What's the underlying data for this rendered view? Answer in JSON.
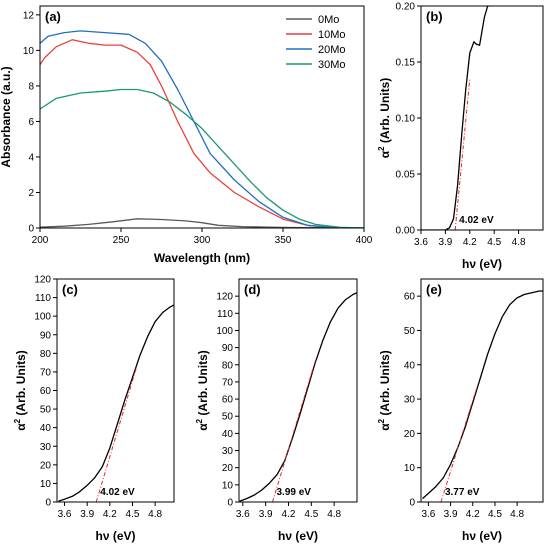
{
  "chart_data": [
    {
      "panel": "(a)",
      "type": "line",
      "xlabel": "Wavelength (nm)",
      "ylabel": "Absorbance (a.u.)",
      "xlim": [
        200,
        400
      ],
      "ylim": [
        0,
        12.5
      ],
      "xticks": [
        200,
        250,
        300,
        350,
        400
      ],
      "yticks": [
        0,
        2,
        4,
        6,
        8,
        10,
        12
      ],
      "legend_position": "top-right",
      "series": [
        {
          "name": "0Mo",
          "color": "#5a5a5a",
          "x": [
            200,
            215,
            230,
            245,
            260,
            275,
            290,
            300,
            310,
            325,
            340,
            355,
            370,
            400
          ],
          "y": [
            0.05,
            0.1,
            0.2,
            0.35,
            0.52,
            0.48,
            0.4,
            0.3,
            0.15,
            0.08,
            0.05,
            0.03,
            0.02,
            0.0
          ]
        },
        {
          "name": "10Mo",
          "color": "#e8413e",
          "x": [
            200,
            203,
            210,
            220,
            230,
            240,
            250,
            260,
            268,
            275,
            285,
            295,
            305,
            320,
            335,
            350,
            365,
            380,
            400
          ],
          "y": [
            9.2,
            9.6,
            10.2,
            10.6,
            10.4,
            10.3,
            10.3,
            9.9,
            9.2,
            8.0,
            6.0,
            4.2,
            3.1,
            2.0,
            1.2,
            0.5,
            0.15,
            0.03,
            0.0
          ]
        },
        {
          "name": "20Mo",
          "color": "#1f70c1",
          "x": [
            200,
            205,
            215,
            225,
            240,
            255,
            265,
            275,
            285,
            295,
            305,
            320,
            335,
            350,
            365,
            380,
            400
          ],
          "y": [
            10.4,
            10.8,
            11.0,
            11.1,
            11.0,
            10.9,
            10.4,
            9.4,
            7.8,
            6.0,
            4.2,
            2.7,
            1.5,
            0.6,
            0.15,
            0.03,
            0.0
          ]
        },
        {
          "name": "30Mo",
          "color": "#1a9a6c",
          "x": [
            200,
            210,
            225,
            240,
            250,
            260,
            270,
            280,
            290,
            300,
            310,
            320,
            330,
            340,
            350,
            360,
            370,
            385,
            400
          ],
          "y": [
            6.7,
            7.3,
            7.6,
            7.7,
            7.8,
            7.8,
            7.6,
            7.1,
            6.4,
            5.6,
            4.6,
            3.6,
            2.6,
            1.7,
            1.0,
            0.5,
            0.2,
            0.04,
            0.0
          ]
        }
      ]
    },
    {
      "panel": "(b)",
      "type": "line",
      "xlabel": "hν (eV)",
      "ylabel": "α² (Arb. Units)",
      "ylabel_base": "α",
      "ylabel_sup": "2",
      "ylabel_rest": " (Arb. Units)",
      "xlim": [
        3.6,
        5.1
      ],
      "ylim": [
        0,
        0.2
      ],
      "xticks": [
        3.6,
        3.9,
        4.2,
        4.5,
        4.8
      ],
      "xtick_labels": [
        "3.6",
        "3.9",
        "4.2",
        "4.5",
        "4.8"
      ],
      "yticks": [
        0,
        0.05,
        0.1,
        0.15,
        0.2
      ],
      "ytick_labels": [
        "0.00",
        "0.05",
        "0.10",
        "0.15",
        "0.20"
      ],
      "annotation": "4.02 eV",
      "band_gap": 4.02,
      "fit_line": {
        "x": [
          4.02,
          4.2
        ],
        "y": [
          0,
          0.135
        ]
      },
      "series": [
        {
          "name": "",
          "color": "#000000",
          "x": [
            3.6,
            3.9,
            3.95,
            4.0,
            4.05,
            4.1,
            4.15,
            4.2,
            4.25,
            4.28,
            4.32,
            4.38,
            4.42,
            4.44
          ],
          "y": [
            0,
            0,
            0.002,
            0.01,
            0.04,
            0.085,
            0.125,
            0.158,
            0.168,
            0.166,
            0.165,
            0.19,
            0.2,
            0.2
          ]
        }
      ]
    },
    {
      "panel": "(c)",
      "type": "line",
      "xlabel": "hν (eV)",
      "ylabel": "α² (Arb. Units)",
      "ylabel_base": "α",
      "ylabel_sup": "2",
      "ylabel_rest": " (Arb. Units)",
      "xlim": [
        3.5,
        5.05
      ],
      "ylim": [
        0,
        120
      ],
      "xticks": [
        3.6,
        3.9,
        4.2,
        4.5,
        4.8
      ],
      "xtick_labels": [
        "3.6",
        "3.9",
        "4.2",
        "4.5",
        "4.8"
      ],
      "yticks": [
        0,
        10,
        20,
        30,
        40,
        50,
        60,
        70,
        80,
        90,
        100,
        110,
        120
      ],
      "ytick_labels": [
        "0",
        "10",
        "20",
        "30",
        "40",
        "50",
        "60",
        "70",
        "80",
        "90",
        "100",
        "110",
        "120"
      ],
      "annotation": "4.02 eV",
      "band_gap": 4.02,
      "fit_line": {
        "x": [
          4.02,
          4.55
        ],
        "y": [
          0,
          72
        ]
      },
      "series": [
        {
          "name": "",
          "color": "#000000",
          "x": [
            3.52,
            3.6,
            3.7,
            3.8,
            3.9,
            4.0,
            4.1,
            4.2,
            4.3,
            4.4,
            4.5,
            4.6,
            4.7,
            4.8,
            4.9,
            5.0,
            5.05
          ],
          "y": [
            0.5,
            1.5,
            3,
            5.5,
            9,
            13,
            19,
            29,
            42,
            55,
            67,
            79,
            89,
            97,
            102,
            105,
            106
          ]
        }
      ]
    },
    {
      "panel": "(d)",
      "type": "line",
      "xlabel": "hν (eV)",
      "ylabel": "α² (Arb. Units)",
      "ylabel_base": "α",
      "ylabel_sup": "2",
      "ylabel_rest": " (Arb. Units)",
      "xlim": [
        3.55,
        5.1
      ],
      "ylim": [
        0,
        130
      ],
      "xticks": [
        3.6,
        3.9,
        4.2,
        4.5,
        4.8
      ],
      "xtick_labels": [
        "3.6",
        "3.9",
        "4.2",
        "4.5",
        "4.8"
      ],
      "yticks": [
        0,
        10,
        20,
        30,
        40,
        50,
        60,
        70,
        80,
        90,
        100,
        110,
        120
      ],
      "ytick_labels": [
        "0",
        "10",
        "20",
        "30",
        "40",
        "50",
        "60",
        "70",
        "80",
        "90",
        "100",
        "110",
        "120"
      ],
      "annotation": "3.99 eV",
      "band_gap": 3.99,
      "fit_line": {
        "x": [
          3.99,
          4.55
        ],
        "y": [
          0,
          82
        ]
      },
      "series": [
        {
          "name": "",
          "color": "#000000",
          "x": [
            3.56,
            3.65,
            3.75,
            3.85,
            3.95,
            4.05,
            4.15,
            4.25,
            4.35,
            4.45,
            4.55,
            4.65,
            4.75,
            4.85,
            4.95,
            5.05,
            5.1
          ],
          "y": [
            0.5,
            2,
            4,
            7,
            11,
            16,
            24,
            37,
            51,
            66,
            81,
            94,
            105,
            113,
            118,
            121,
            122
          ]
        }
      ]
    },
    {
      "panel": "(e)",
      "type": "line",
      "xlabel": "hν (eV)",
      "ylabel": "α² (Arb. Units)",
      "ylabel_base": "α",
      "ylabel_sup": "2",
      "ylabel_rest": " (Arb. Units)",
      "xlim": [
        3.5,
        5.15
      ],
      "ylim": [
        0,
        65
      ],
      "xticks": [
        3.6,
        3.9,
        4.2,
        4.5,
        4.8
      ],
      "xtick_labels": [
        "3.6",
        "3.9",
        "4.2",
        "4.5",
        "4.8"
      ],
      "yticks": [
        0,
        10,
        20,
        30,
        40,
        50,
        60
      ],
      "ytick_labels": [
        "0",
        "10",
        "20",
        "30",
        "40",
        "50",
        "60"
      ],
      "annotation": "3.77 eV",
      "band_gap": 3.77,
      "fit_line": {
        "x": [
          3.77,
          4.25
        ],
        "y": [
          0,
          33
        ]
      },
      "series": [
        {
          "name": "",
          "color": "#000000",
          "x": [
            3.52,
            3.6,
            3.7,
            3.8,
            3.9,
            4.0,
            4.1,
            4.2,
            4.3,
            4.4,
            4.5,
            4.6,
            4.7,
            4.8,
            4.9,
            5.0,
            5.1,
            5.15
          ],
          "y": [
            1,
            2.5,
            4.5,
            7,
            11,
            16,
            22,
            29,
            36,
            43,
            49,
            54,
            57.5,
            59.5,
            60.5,
            61,
            61.5,
            61.5
          ]
        }
      ]
    }
  ]
}
